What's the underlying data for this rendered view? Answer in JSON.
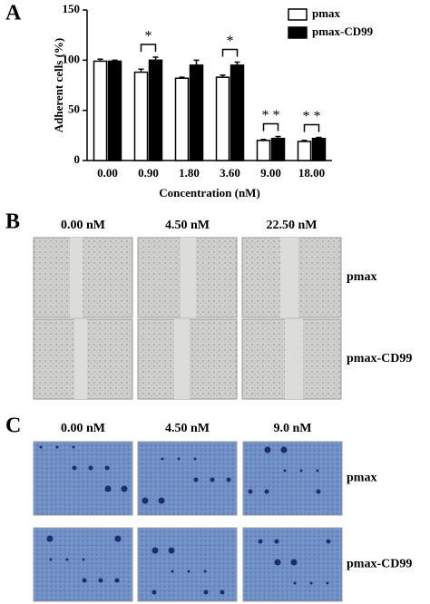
{
  "panel_a": {
    "label": "A"
  },
  "chart_data": {
    "type": "bar",
    "ylabel": "Adherent cells (%)",
    "xlabel": "Concentration (nM)",
    "categories": [
      "0.00",
      "0.90",
      "1.80",
      "3.60",
      "9.00",
      "18.00"
    ],
    "series": [
      {
        "name": "pmax",
        "color": "#ffffff",
        "values": [
          99,
          88,
          82,
          83,
          20,
          19
        ],
        "errors": [
          2,
          3,
          1,
          2,
          1,
          1
        ]
      },
      {
        "name": "pmax-CD99",
        "color": "#000000",
        "values": [
          99,
          100,
          95,
          95,
          22,
          22
        ],
        "errors": [
          1,
          3,
          5,
          3,
          2,
          1
        ]
      }
    ],
    "ylim": [
      0,
      150
    ],
    "yticks": [
      0,
      50,
      100,
      150
    ],
    "annotations": [
      {
        "text": "*",
        "category": "0.90"
      },
      {
        "text": "*",
        "category": "3.60"
      },
      {
        "text": "* *",
        "category": "9.00"
      },
      {
        "text": "* *",
        "category": "18.00"
      }
    ]
  },
  "panel_b": {
    "label": "B",
    "columns": [
      "0.00 nM",
      "4.50 nM",
      "22.50 nM"
    ],
    "rows": [
      "pmax",
      "pmax-CD99"
    ]
  },
  "panel_c": {
    "label": "C",
    "columns": [
      "0.00 nM",
      "4.50 nM",
      "9.0 nM"
    ],
    "rows": [
      "pmax",
      "pmax-CD99"
    ]
  }
}
